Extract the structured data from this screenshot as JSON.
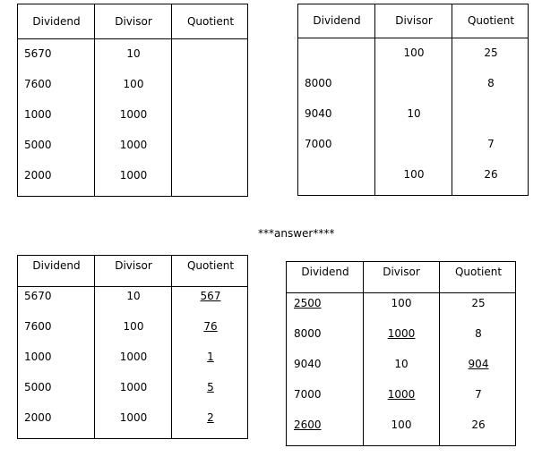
{
  "headers": [
    "Dividend",
    "Divisor",
    "Quotient"
  ],
  "answer_label": "***answer****",
  "tables": [
    {
      "rows": [
        {
          "dividend": "5670",
          "divisor": "10",
          "quotient": ""
        },
        {
          "dividend": "7600",
          "divisor": "100",
          "quotient": ""
        },
        {
          "dividend": "1000",
          "divisor": "1000",
          "quotient": ""
        },
        {
          "dividend": "5000",
          "divisor": "1000",
          "quotient": ""
        },
        {
          "dividend": "2000",
          "divisor": "1000",
          "quotient": ""
        }
      ]
    },
    {
      "rows": [
        {
          "dividend": "",
          "divisor": "100",
          "quotient": "25"
        },
        {
          "dividend": "8000",
          "divisor": "",
          "quotient": "8"
        },
        {
          "dividend": "9040",
          "divisor": "10",
          "quotient": ""
        },
        {
          "dividend": "7000",
          "divisor": "",
          "quotient": "7"
        },
        {
          "dividend": "",
          "divisor": "100",
          "quotient": "26"
        }
      ]
    },
    {
      "rows": [
        {
          "dividend": "5670",
          "divisor": "10",
          "quotient": "567"
        },
        {
          "dividend": "7600",
          "divisor": "100",
          "quotient": "76"
        },
        {
          "dividend": "1000",
          "divisor": "1000",
          "quotient": "1"
        },
        {
          "dividend": "5000",
          "divisor": "1000",
          "quotient": "5"
        },
        {
          "dividend": "2000",
          "divisor": "1000",
          "quotient": "2"
        }
      ]
    },
    {
      "rows": [
        {
          "dividend": "2500",
          "divisor": "100",
          "quotient": "25"
        },
        {
          "dividend": "8000",
          "divisor": "1000",
          "quotient": "8"
        },
        {
          "dividend": "9040",
          "divisor": "10",
          "quotient": "904"
        },
        {
          "dividend": "7000",
          "divisor": "1000",
          "quotient": "7"
        },
        {
          "dividend": "2600",
          "divisor": "100",
          "quotient": "26"
        }
      ]
    }
  ]
}
